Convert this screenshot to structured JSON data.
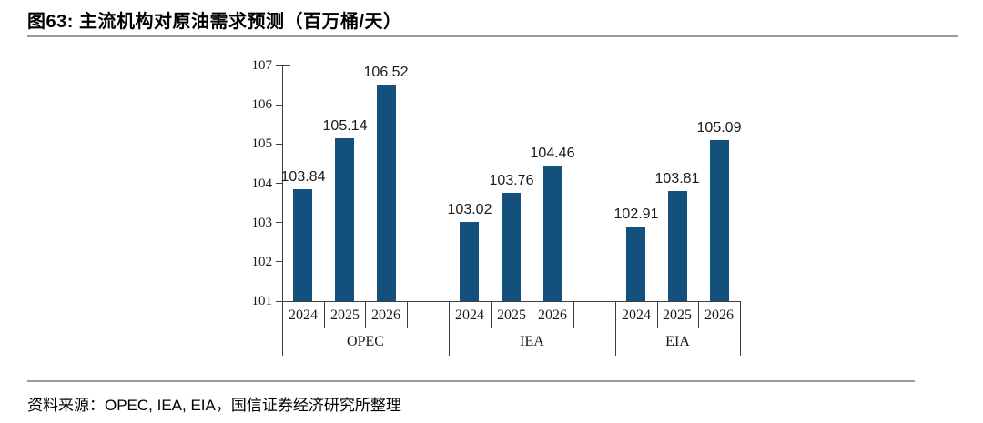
{
  "title": "图63: 主流机构对原油需求预测（百万桶/天）",
  "source": "资料来源：OPEC, IEA, EIA，国信证券经济研究所整理",
  "colors": {
    "bar": "#14507e",
    "axis": "#3f3f3f",
    "divider_rule": "#9b9b9b",
    "text": "#000000"
  },
  "chart_data": {
    "type": "bar",
    "title": "图63: 主流机构对原油需求预测（百万桶/天）",
    "ylabel": "",
    "xlabel": "",
    "ylim": [
      101,
      107
    ],
    "yticks": [
      101,
      102,
      103,
      104,
      105,
      106,
      107
    ],
    "grid": false,
    "legend": "none",
    "data_labels": true,
    "categories": [
      "2024",
      "2025",
      "2026"
    ],
    "groups": [
      {
        "name": "OPEC",
        "values": [
          103.84,
          105.14,
          106.52
        ]
      },
      {
        "name": "IEA",
        "values": [
          103.02,
          103.76,
          104.46
        ]
      },
      {
        "name": "EIA",
        "values": [
          102.91,
          103.81,
          105.09
        ]
      }
    ],
    "bar_color": "#14507e",
    "unit": "百万桶/天"
  }
}
